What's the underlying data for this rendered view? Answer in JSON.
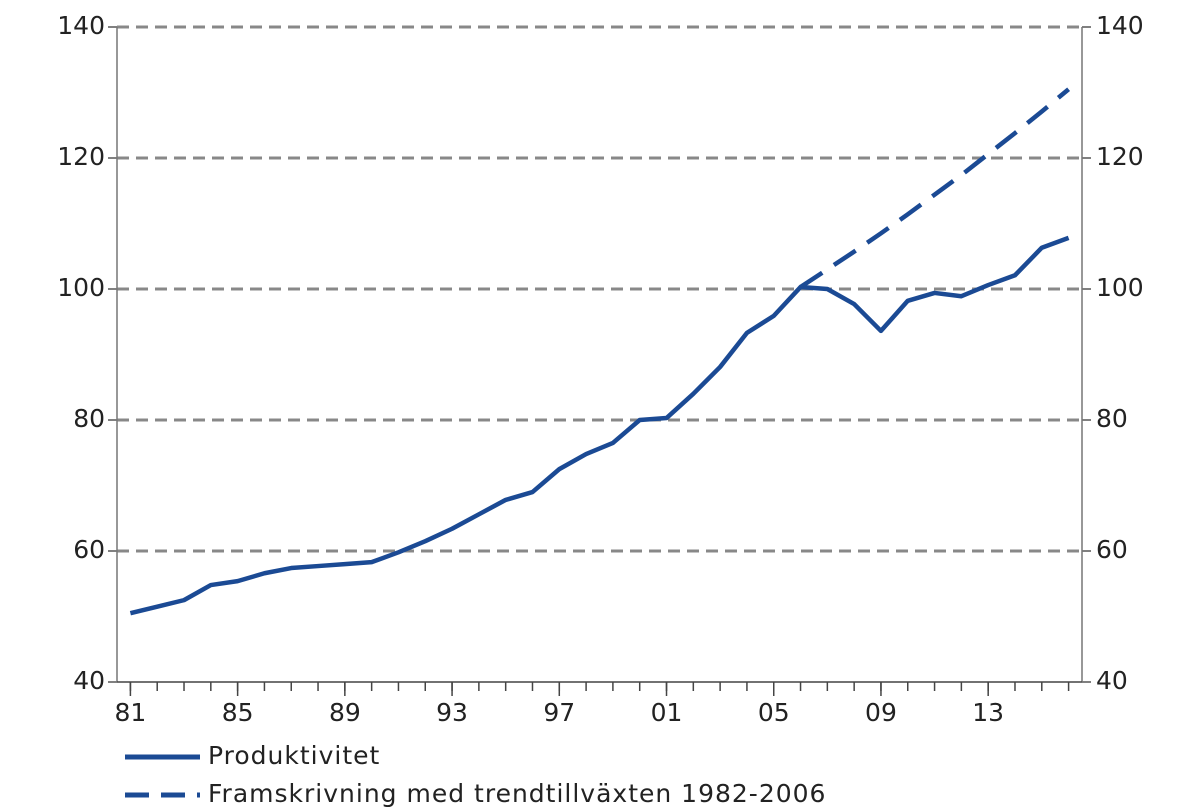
{
  "chart_data": {
    "type": "line",
    "x": [
      1981,
      1982,
      1983,
      1984,
      1985,
      1986,
      1987,
      1988,
      1989,
      1990,
      1991,
      1992,
      1993,
      1994,
      1995,
      1996,
      1997,
      1998,
      1999,
      2000,
      2001,
      2002,
      2003,
      2004,
      2005,
      2006,
      2007,
      2008,
      2009,
      2010,
      2011,
      2012,
      2013,
      2014,
      2015,
      2016
    ],
    "series": [
      {
        "name": "Produktivitet",
        "color": "#1b4a94",
        "dash": false,
        "values": [
          50.5,
          51.5,
          52.5,
          54.8,
          55.4,
          56.6,
          57.4,
          57.7,
          58.0,
          58.3,
          59.8,
          61.5,
          63.4,
          65.6,
          67.8,
          69.0,
          72.5,
          74.8,
          76.5,
          80.0,
          80.3,
          84.0,
          88.1,
          93.3,
          95.9,
          100.3,
          100.0,
          97.7,
          93.6,
          98.2,
          99.4,
          98.9,
          100.6,
          102.1,
          106.3,
          107.8
        ]
      },
      {
        "name": "Framskrivning med trendtillväxten 1982-2006",
        "color": "#1b4a94",
        "dash": true,
        "values": [
          null,
          null,
          null,
          null,
          null,
          null,
          null,
          null,
          null,
          null,
          null,
          null,
          null,
          null,
          null,
          null,
          null,
          null,
          null,
          null,
          null,
          null,
          null,
          null,
          null,
          100.3,
          103.0,
          105.7,
          108.5,
          111.4,
          114.4,
          117.4,
          120.6,
          123.8,
          127.1,
          130.5
        ]
      }
    ],
    "xlim": [
      1980.5,
      2016.5
    ],
    "xticks": [
      {
        "value": 1981,
        "label": "81"
      },
      {
        "value": 1985,
        "label": "85"
      },
      {
        "value": 1989,
        "label": "89"
      },
      {
        "value": 1993,
        "label": "93"
      },
      {
        "value": 1997,
        "label": "97"
      },
      {
        "value": 2001,
        "label": "01"
      },
      {
        "value": 2005,
        "label": "05"
      },
      {
        "value": 2009,
        "label": "09"
      },
      {
        "value": 2013,
        "label": "13"
      }
    ],
    "ylim": [
      40,
      140
    ],
    "yticks": [
      40,
      60,
      80,
      100,
      120,
      140
    ],
    "y2lim": [
      40,
      140
    ],
    "y2ticks": [
      40,
      60,
      80,
      100,
      120,
      140
    ],
    "grid": true
  }
}
